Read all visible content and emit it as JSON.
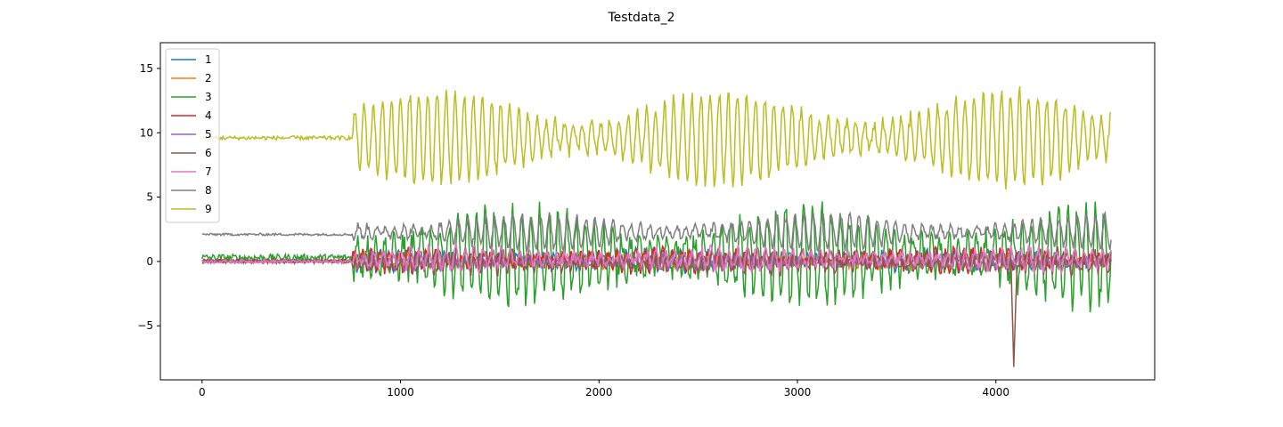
{
  "chart_data": {
    "type": "line",
    "title": "Testdata_2",
    "xlabel": "",
    "ylabel": "",
    "xlim": [
      -210,
      4800
    ],
    "ylim": [
      -9.2,
      17.0
    ],
    "x_range": [
      0,
      4580
    ],
    "xticks": [
      0,
      1000,
      2000,
      3000,
      4000
    ],
    "yticks": [
      -5,
      0,
      5,
      10,
      15
    ],
    "ytick_labels": [
      "−5",
      "0",
      "5",
      "10",
      "15"
    ],
    "grid": false,
    "legend_position": "top-left",
    "series": [
      {
        "name": "1",
        "color": "#1f77b4",
        "base": 0.1,
        "quiet_level": 0.05,
        "amp": 0.7,
        "noise": 0.4
      },
      {
        "name": "2",
        "color": "#ff7f0e",
        "base": 0.0,
        "quiet_level": 0.0,
        "amp": 0.5,
        "noise": 0.3
      },
      {
        "name": "3",
        "color": "#2ca02c",
        "base": 0.4,
        "quiet_level": 0.3,
        "amp": 3.6,
        "noise": 0.9
      },
      {
        "name": "4",
        "color": "#d62728",
        "base": 0.1,
        "quiet_level": 0.05,
        "amp": 0.8,
        "noise": 0.4
      },
      {
        "name": "5",
        "color": "#9467bd",
        "base": 0.0,
        "quiet_level": 0.0,
        "amp": 0.5,
        "noise": 0.3
      },
      {
        "name": "6",
        "color": "#8c564b",
        "base": 0.0,
        "quiet_level": 0.0,
        "amp": 0.7,
        "noise": 0.5
      },
      {
        "name": "7",
        "color": "#e377c2",
        "base": 0.2,
        "quiet_level": 0.0,
        "amp": 0.8,
        "noise": 0.4
      },
      {
        "name": "8",
        "color": "#7f7f7f",
        "base": 2.3,
        "quiet_level": 2.1,
        "amp": 1.3,
        "noise": 0.3
      },
      {
        "name": "9",
        "color": "#bcbd22",
        "base": 9.6,
        "quiet_level": 9.6,
        "amp": 3.6,
        "noise": 0.5
      }
    ],
    "quiet_until_x": 760,
    "spike": {
      "series": "6",
      "x": 4090,
      "y": -8.2
    }
  }
}
